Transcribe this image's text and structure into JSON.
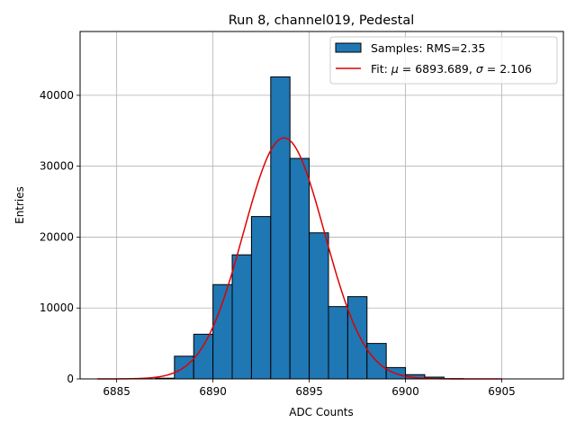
{
  "chart_data": {
    "type": "bar",
    "title": "Run 8, channel019, Pedestal",
    "xlabel": "ADC Counts",
    "ylabel": "Entries",
    "xlim": [
      6883.1,
      6908.2
    ],
    "ylim": [
      0,
      49000
    ],
    "xticks": [
      6885,
      6890,
      6895,
      6900,
      6905
    ],
    "yticks": [
      0,
      10000,
      20000,
      30000,
      40000
    ],
    "grid": true,
    "legend_position": "top-right",
    "bar_color": "#1f77b4",
    "fit_color": "#e00000",
    "histogram": {
      "name": "Samples: RMS=2.35",
      "bin_width": 1,
      "bin_left_edges": [
        6884,
        6885,
        6886,
        6887,
        6888,
        6889,
        6890,
        6891,
        6892,
        6893,
        6894,
        6895,
        6896,
        6897,
        6898,
        6899,
        6900,
        6901,
        6902
      ],
      "values": [
        0,
        0,
        0,
        100,
        3200,
        6300,
        13300,
        17500,
        22900,
        42600,
        31100,
        20600,
        10200,
        11600,
        5000,
        1600,
        600,
        250,
        40
      ]
    },
    "fit": {
      "name_prefix": "Fit: ",
      "mu_symbol": "μ",
      "sigma_symbol": "σ",
      "eq": " = ",
      "mu_text": "6893.689",
      "sigma_text": "2.106",
      "separator": ", ",
      "mu": 6893.689,
      "sigma": 2.106,
      "amplitude": 34000,
      "x_range": [
        6884,
        6905
      ]
    }
  }
}
